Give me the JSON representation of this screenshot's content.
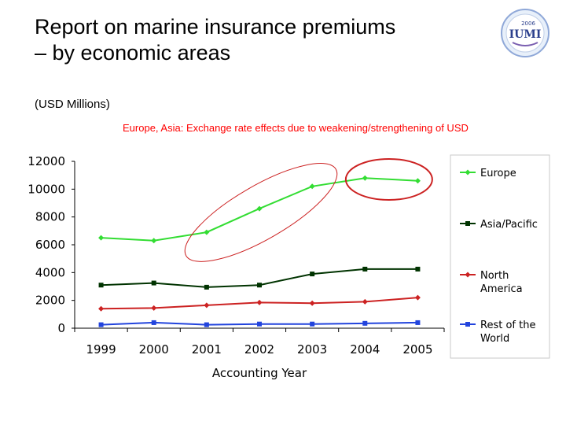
{
  "slide": {
    "title_line1": "Report on marine insurance premiums",
    "title_line2": "– by economic areas",
    "subtitle": "(USD Millions)",
    "note": "Europe, Asia: Exchange rate effects due to weakening/strengthening of USD",
    "note_color": "#ff0000",
    "logo": {
      "text_top": "2006",
      "text_main": "IUMI",
      "icon": "iumi-globe-logo"
    }
  },
  "chart_data": {
    "type": "line",
    "title": "",
    "xlabel": "Accounting Year",
    "ylabel": "",
    "categories": [
      "1999",
      "2000",
      "2001",
      "2002",
      "2003",
      "2004",
      "2005"
    ],
    "ylim": [
      0,
      12000
    ],
    "yticks": [
      "0",
      "2000",
      "4000",
      "6000",
      "8000",
      "10000",
      "12000"
    ],
    "grid": false,
    "legend_position": "right",
    "series": [
      {
        "name": "Europe",
        "color": "#33dd33",
        "marker": "diamond",
        "values": [
          6500,
          6300,
          6900,
          8600,
          10200,
          10800,
          10600
        ]
      },
      {
        "name": "Asia/Pacific",
        "color": "#003300",
        "marker": "square",
        "values": [
          3100,
          3250,
          2950,
          3100,
          3900,
          4250,
          4250
        ]
      },
      {
        "name": "North America",
        "legend_lines": [
          "North",
          "America"
        ],
        "color": "#cc2222",
        "marker": "diamond",
        "values": [
          1400,
          1450,
          1650,
          1850,
          1800,
          1900,
          2200
        ]
      },
      {
        "name": "Rest of the World",
        "legend_lines": [
          "Rest of the",
          "World"
        ],
        "color": "#2244dd",
        "marker": "square",
        "values": [
          250,
          400,
          250,
          300,
          300,
          350,
          400
        ]
      }
    ],
    "annotations": [
      {
        "type": "ellipse",
        "color": "#cc2222",
        "covers": "Europe 2001-2003"
      },
      {
        "type": "ellipse",
        "color": "#cc2222",
        "covers": "Europe 2004-2005"
      }
    ]
  }
}
